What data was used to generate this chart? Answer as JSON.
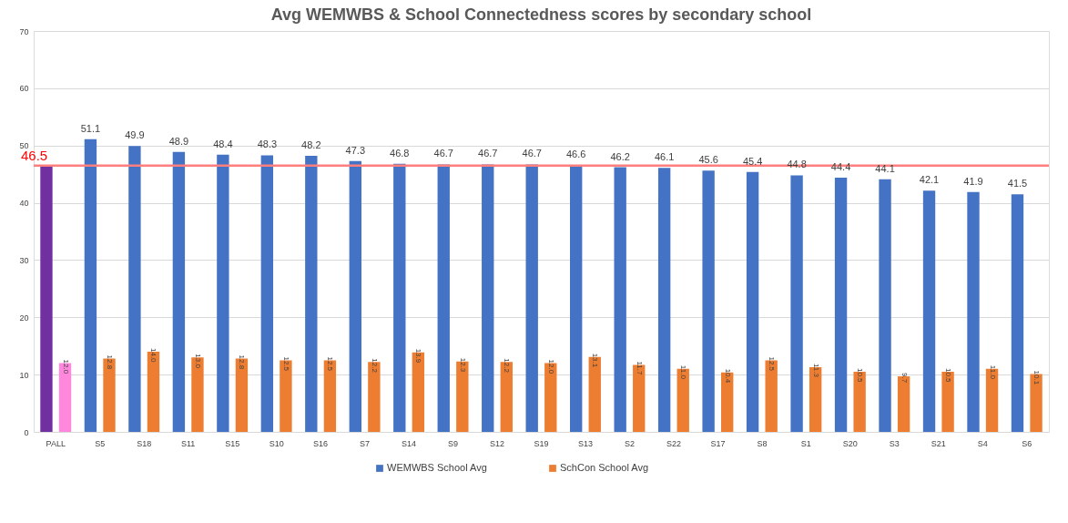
{
  "chart_data": {
    "type": "bar",
    "title": "Avg WEMWBS & School Connectedness scores by secondary school",
    "categories": [
      "PALL",
      "S5",
      "S18",
      "S11",
      "S15",
      "S10",
      "S16",
      "S7",
      "S14",
      "S9",
      "S12",
      "S19",
      "S13",
      "S2",
      "S22",
      "S17",
      "S8",
      "S1",
      "S20",
      "S3",
      "S21",
      "S4",
      "S6"
    ],
    "series": [
      {
        "name": "WEMWBS School Avg",
        "color": "#4472c4",
        "colors": [
          "#7030a0",
          "#4472c4",
          "#4472c4",
          "#4472c4",
          "#4472c4",
          "#4472c4",
          "#4472c4",
          "#4472c4",
          "#4472c4",
          "#4472c4",
          "#4472c4",
          "#4472c4",
          "#4472c4",
          "#4472c4",
          "#4472c4",
          "#4472c4",
          "#4472c4",
          "#4472c4",
          "#4472c4",
          "#4472c4",
          "#4472c4",
          "#4472c4",
          "#4472c4"
        ],
        "values": [
          46.5,
          51.1,
          49.9,
          48.9,
          48.4,
          48.3,
          48.2,
          47.3,
          46.8,
          46.7,
          46.7,
          46.7,
          46.6,
          46.2,
          46.1,
          45.6,
          45.4,
          44.8,
          44.4,
          44.1,
          42.1,
          41.9,
          41.5
        ],
        "value_labels": [
          null,
          "51.1",
          "49.9",
          "48.9",
          "48.4",
          "48.3",
          "48.2",
          "47.3",
          "46.8",
          "46.7",
          "46.7",
          "46.7",
          "46.6",
          "46.2",
          "46.1",
          "45.6",
          "45.4",
          "44.8",
          "44.4",
          "44.1",
          "42.1",
          "41.9",
          "41.5"
        ]
      },
      {
        "name": "SchCon School Avg",
        "color": "#ed7d31",
        "colors": [
          "#ff88dd",
          "#ed7d31",
          "#ed7d31",
          "#ed7d31",
          "#ed7d31",
          "#ed7d31",
          "#ed7d31",
          "#ed7d31",
          "#ed7d31",
          "#ed7d31",
          "#ed7d31",
          "#ed7d31",
          "#ed7d31",
          "#ed7d31",
          "#ed7d31",
          "#ed7d31",
          "#ed7d31",
          "#ed7d31",
          "#ed7d31",
          "#ed7d31",
          "#ed7d31",
          "#ed7d31",
          "#ed7d31"
        ],
        "values": [
          12.0,
          12.8,
          14.0,
          13.0,
          12.8,
          12.5,
          12.5,
          12.2,
          13.9,
          12.3,
          12.2,
          12.0,
          13.1,
          11.7,
          11.0,
          10.4,
          12.5,
          11.3,
          10.5,
          9.7,
          10.5,
          11.0,
          10.1
        ],
        "value_labels": [
          "12.0",
          "12.8",
          "14.0",
          "13.0",
          "12.8",
          "12.5",
          "12.5",
          "12.2",
          "13.9",
          "12.3",
          "12.2",
          "12.0",
          "13.1",
          "11.7",
          "11.0",
          "10.4",
          "12.5",
          "11.3",
          "10.5",
          "9.7",
          "10.5",
          "11.0",
          "10.1"
        ]
      }
    ],
    "ylim": [
      0,
      70
    ],
    "yticks": [
      0,
      10,
      20,
      30,
      40,
      50,
      60,
      70
    ],
    "grid": "y",
    "legend": "bottom",
    "ref_lines": [
      {
        "axis": "y",
        "value": 46.5,
        "label": "46.5",
        "color": "#ff7f7f"
      }
    ]
  }
}
